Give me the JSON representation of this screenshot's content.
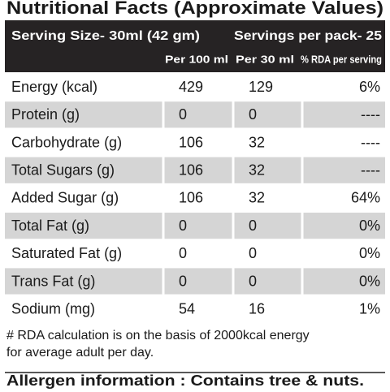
{
  "title": "Nutritional Facts (Approximate Values)",
  "serving": {
    "size": "Serving Size- 30ml (42 gm)",
    "per_pack": "Servings per pack- 25"
  },
  "table": {
    "columns": [
      "Per 100 ml",
      "Per 30 ml",
      "% RDA per serving"
    ],
    "rows": [
      [
        "Energy (kcal)",
        "429",
        "129",
        "6%"
      ],
      [
        "Protein (g)",
        "0",
        "0",
        "----"
      ],
      [
        "Carbohydrate (g)",
        "106",
        "32",
        "----"
      ],
      [
        "Total Sugars (g)",
        "106",
        "32",
        "----"
      ],
      [
        "Added Sugar (g)",
        "106",
        "32",
        "64%"
      ],
      [
        "Total Fat (g)",
        "0",
        "0",
        "0%"
      ],
      [
        "Saturated Fat (g)",
        "0",
        "0",
        "0%"
      ],
      [
        "Trans Fat (g)",
        "0",
        "0",
        "0%"
      ],
      [
        "Sodium (mg)",
        "54",
        "16",
        "1%"
      ]
    ]
  },
  "footnote": [
    "# RDA calculation is on the basis of 2000kcal energy",
    "for average adult per day."
  ],
  "allergen": "Allergen information : Contains tree & nuts."
}
